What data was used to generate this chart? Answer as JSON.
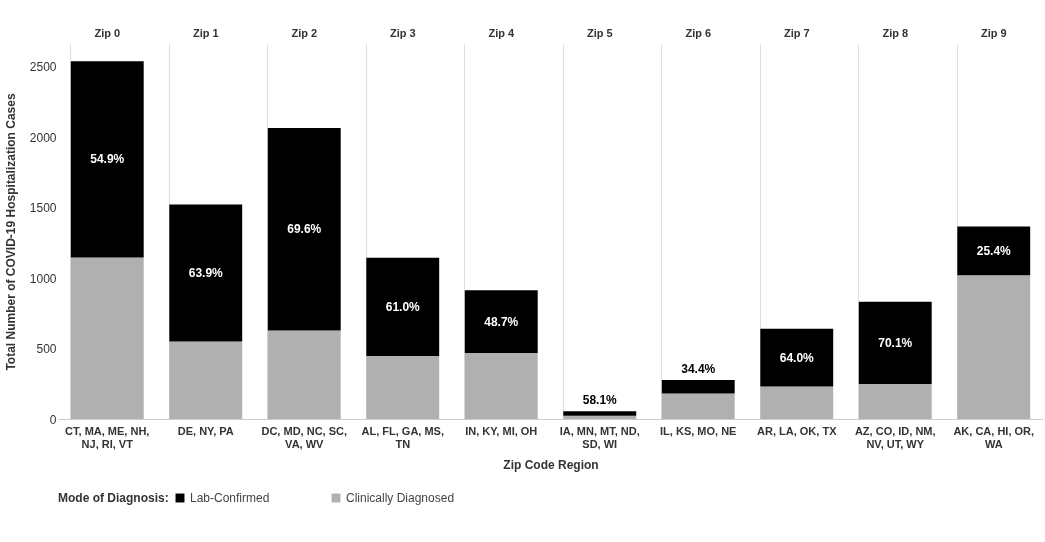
{
  "chart_data": {
    "type": "bar",
    "stacked": true,
    "xlabel": "Zip Code Region",
    "ylabel": "Total Number of COVID-19 Hospitalization Cases",
    "legend_title": "Mode of Diagnosis:",
    "legend": "bottom",
    "grid": "x",
    "categories": [
      "CT, MA, ME, NH, NJ, RI, VT",
      "DE, NY, PA",
      "DC, MD, NC, SC, VA, WV",
      "AL, FL, GA, MS, TN",
      "IN, KY, MI, OH",
      "IA, MN, MT, ND, SD, WI",
      "IL, KS, MO, NE",
      "AR, LA, OK, TX",
      "AZ, CO, ID, NM, NV, UT, WY",
      "AK, CA, HI, OR, WA"
    ],
    "series": [
      {
        "name": "Clinically Diagnosed",
        "color": "#b0b0b0",
        "values": [
          1145,
          549,
          628,
          446,
          469,
          23,
          181,
          230,
          249,
          1019
        ]
      },
      {
        "name": "Lab-Confirmed",
        "color": "#000000",
        "values": [
          1393,
          972,
          1436,
          697,
          445,
          32,
          95,
          410,
          583,
          347
        ]
      }
    ],
    "ylim": [
      0,
      2660
    ],
    "yticks": [
      0,
      500,
      1000,
      1500,
      2000,
      2500
    ],
    "annotations": [
      "Zip 0",
      "Zip 1",
      "Zip 2",
      "Zip 3",
      "Zip 4",
      "Zip 5",
      "Zip 6",
      "Zip 7",
      "Zip 8",
      "Zip 9",
      "54.9%",
      "63.9%",
      "69.6%",
      "61.0%",
      "48.7%",
      "58.1%",
      "34.4%",
      "64.0%",
      "70.1%",
      "25.4%"
    ]
  }
}
